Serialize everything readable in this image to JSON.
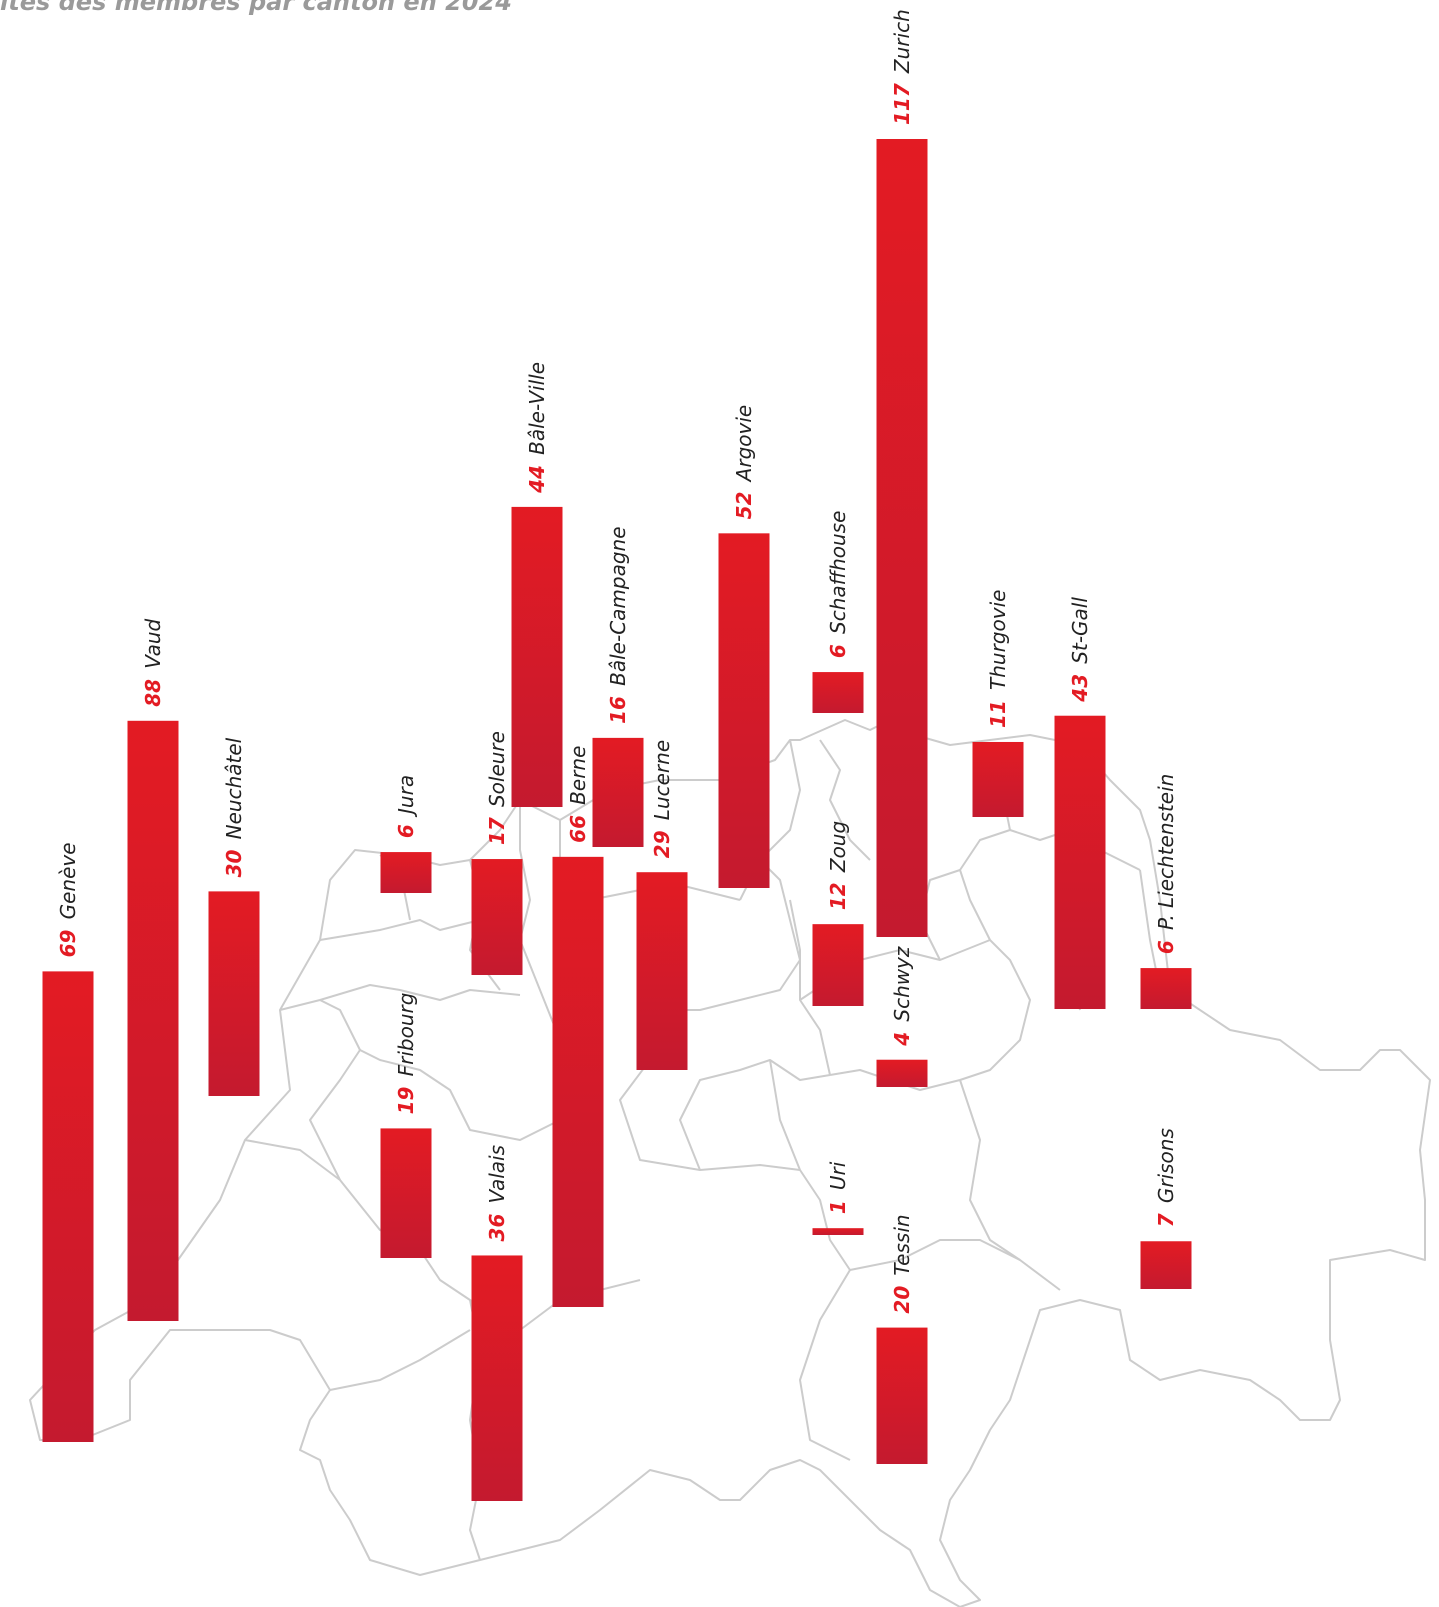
{
  "header": {
    "title": "ités des membres par canton en 2024"
  },
  "colors": {
    "bar_top": "#e31b23",
    "bar_bottom": "#c41a2f",
    "value_label": "#e31b23",
    "map_border": "#cccccc"
  },
  "chart_data": {
    "type": "bar",
    "title": "ités des membres par canton en 2024",
    "xlabel": "",
    "ylabel": "",
    "value_scale_max": 117,
    "categories": [
      "Genève",
      "Vaud",
      "Neuchâtel",
      "Jura",
      "Fribourg",
      "Soleure",
      "Valais",
      "Bâle-Ville",
      "Berne",
      "Bâle-Campagne",
      "Lucerne",
      "Argovie",
      "Schaffhouse",
      "Zoug",
      "Uri",
      "Zurich",
      "Schwyz",
      "Tessin",
      "Thurgovie",
      "St-Gall",
      "P. Liechtenstein",
      "Grisons"
    ],
    "values": [
      69,
      88,
      30,
      6,
      19,
      17,
      36,
      44,
      66,
      16,
      29,
      52,
      6,
      12,
      1,
      117,
      4,
      20,
      11,
      43,
      6,
      7
    ],
    "background": "outline map of Swiss cantons"
  }
}
